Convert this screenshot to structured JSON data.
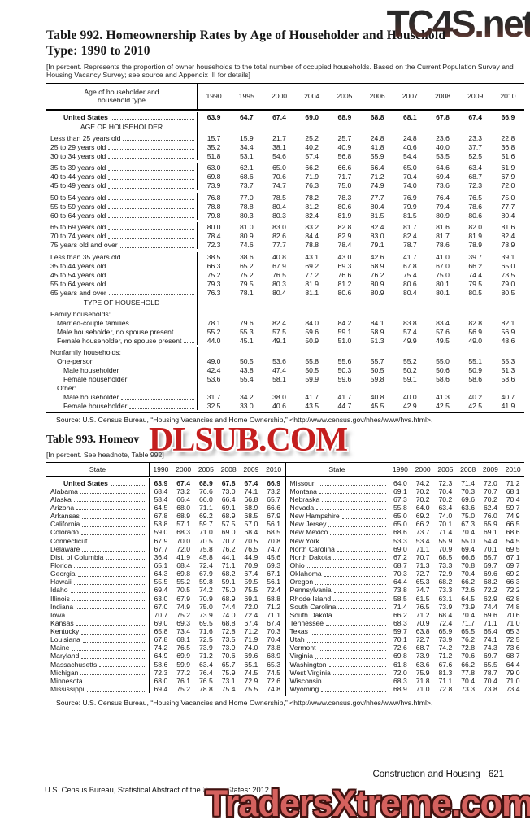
{
  "watermarks": {
    "top": "TC4S.net",
    "middle": "DLSUB.COM",
    "bottom": "TradersXtreme.com"
  },
  "table992": {
    "title_line1": "Table 992. Homeownership Rates by Age of Householder and Household",
    "title_line2": "Type: 1990 to 2010",
    "headnote": "[In percent. Represents the proportion of owner households to the total number of occupied households. Based on the Current Population Survey and Housing Vacancy Survey; see source and Appendix III for details]",
    "header_label_line1": "Age of householder and",
    "header_label_line2": "household type",
    "years": [
      "1990",
      "1995",
      "2000",
      "2004",
      "2005",
      "2006",
      "2007",
      "2008",
      "2009",
      "2010"
    ],
    "rows": [
      {
        "l": "United States",
        "s": "b",
        "i": 2,
        "v": [
          "63.9",
          "64.7",
          "67.4",
          "69.0",
          "68.9",
          "68.8",
          "68.1",
          "67.8",
          "67.4",
          "66.9"
        ]
      },
      {
        "l": "AGE OF HOUSEHOLDER",
        "s": "section"
      },
      {
        "l": "Less than 25 years old",
        "v": [
          "15.7",
          "15.9",
          "21.7",
          "25.2",
          "25.7",
          "24.8",
          "24.8",
          "23.6",
          "23.3",
          "22.8"
        ]
      },
      {
        "l": "25 to 29 years old",
        "v": [
          "35.2",
          "34.4",
          "38.1",
          "40.2",
          "40.9",
          "41.8",
          "40.6",
          "40.0",
          "37.7",
          "36.8"
        ]
      },
      {
        "l": "30 to 34 years old",
        "v": [
          "51.8",
          "53.1",
          "54.6",
          "57.4",
          "56.8",
          "55.9",
          "54.4",
          "53.5",
          "52.5",
          "51.6"
        ]
      },
      {
        "l": "35 to 39 years old",
        "g": 1,
        "v": [
          "63.0",
          "62.1",
          "65.0",
          "66.2",
          "66.6",
          "66.4",
          "65.0",
          "64.6",
          "63.4",
          "61.9"
        ]
      },
      {
        "l": "40 to 44 years old",
        "v": [
          "69.8",
          "68.6",
          "70.6",
          "71.9",
          "71.7",
          "71.2",
          "70.4",
          "69.4",
          "68.7",
          "67.9"
        ]
      },
      {
        "l": "45 to 49 years old",
        "v": [
          "73.9",
          "73.7",
          "74.7",
          "76.3",
          "75.0",
          "74.9",
          "74.0",
          "73.6",
          "72.3",
          "72.0"
        ]
      },
      {
        "l": "50 to 54 years old",
        "g": 1,
        "v": [
          "76.8",
          "77.0",
          "78.5",
          "78.2",
          "78.3",
          "77.7",
          "76.9",
          "76.4",
          "76.5",
          "75.0"
        ]
      },
      {
        "l": "55 to 59 years old",
        "v": [
          "78.8",
          "78.8",
          "80.4",
          "81.2",
          "80.6",
          "80.4",
          "79.9",
          "79.4",
          "78.6",
          "77.7"
        ]
      },
      {
        "l": "60 to 64 years old",
        "v": [
          "79.8",
          "80.3",
          "80.3",
          "82.4",
          "81.9",
          "81.5",
          "81.5",
          "80.9",
          "80.6",
          "80.4"
        ]
      },
      {
        "l": "65 to 69 years old",
        "g": 1,
        "v": [
          "80.0",
          "81.0",
          "83.0",
          "83.2",
          "82.8",
          "82.4",
          "81.7",
          "81.6",
          "82.0",
          "81.6"
        ]
      },
      {
        "l": "70 to 74 years old",
        "v": [
          "78.4",
          "80.9",
          "82.6",
          "84.4",
          "82.9",
          "83.0",
          "82.4",
          "81.7",
          "81.9",
          "82.4"
        ]
      },
      {
        "l": "75 years old and over",
        "v": [
          "72.3",
          "74.6",
          "77.7",
          "78.8",
          "78.4",
          "79.1",
          "78.7",
          "78.6",
          "78.9",
          "78.9"
        ]
      },
      {
        "l": "Less than 35 years old",
        "g": 1,
        "v": [
          "38.5",
          "38.6",
          "40.8",
          "43.1",
          "43.0",
          "42.6",
          "41.7",
          "41.0",
          "39.7",
          "39.1"
        ]
      },
      {
        "l": "35 to 44 years old",
        "v": [
          "66.3",
          "65.2",
          "67.9",
          "69.2",
          "69.3",
          "68.9",
          "67.8",
          "67.0",
          "66.2",
          "65.0"
        ]
      },
      {
        "l": "45 to 54 years old",
        "v": [
          "75.2",
          "75.2",
          "76.5",
          "77.2",
          "76.6",
          "76.2",
          "75.4",
          "75.0",
          "74.4",
          "73.5"
        ]
      },
      {
        "l": "55 to 64 years old",
        "v": [
          "79.3",
          "79.5",
          "80.3",
          "81.9",
          "81.2",
          "80.9",
          "80.6",
          "80.1",
          "79.5",
          "79.0"
        ]
      },
      {
        "l": "65 years and over",
        "v": [
          "76.3",
          "78.1",
          "80.4",
          "81.1",
          "80.6",
          "80.9",
          "80.4",
          "80.1",
          "80.5",
          "80.5"
        ]
      },
      {
        "l": "TYPE OF HOUSEHOLD",
        "s": "section"
      },
      {
        "l": "Family households:"
      },
      {
        "l": "Married-couple families",
        "i": 1,
        "v": [
          "78.1",
          "79.6",
          "82.4",
          "84.0",
          "84.2",
          "84.1",
          "83.8",
          "83.4",
          "82.8",
          "82.1"
        ]
      },
      {
        "l": "Male householder, no spouse present",
        "i": 1,
        "v": [
          "55.2",
          "55.3",
          "57.5",
          "59.6",
          "59.1",
          "58.9",
          "57.4",
          "57.6",
          "56.9",
          "56.9"
        ]
      },
      {
        "l": "Female householder, no spouse present",
        "i": 1,
        "v": [
          "44.0",
          "45.1",
          "49.1",
          "50.9",
          "51.0",
          "51.3",
          "49.9",
          "49.5",
          "49.0",
          "48.6"
        ]
      },
      {
        "l": "Nonfamily households:",
        "g": 1
      },
      {
        "l": "One-person",
        "i": 1,
        "v": [
          "49.0",
          "50.5",
          "53.6",
          "55.8",
          "55.6",
          "55.7",
          "55.2",
          "55.0",
          "55.1",
          "55.3"
        ]
      },
      {
        "l": "Male householder",
        "i": 2,
        "v": [
          "42.4",
          "43.8",
          "47.4",
          "50.5",
          "50.3",
          "50.5",
          "50.2",
          "50.6",
          "50.9",
          "51.3"
        ]
      },
      {
        "l": "Female householder",
        "i": 2,
        "v": [
          "53.6",
          "55.4",
          "58.1",
          "59.9",
          "59.6",
          "59.8",
          "59.1",
          "58.6",
          "58.6",
          "58.6"
        ]
      },
      {
        "l": "Other:",
        "i": 1
      },
      {
        "l": "Male householder",
        "i": 2,
        "v": [
          "31.7",
          "34.2",
          "38.0",
          "41.7",
          "41.7",
          "40.8",
          "40.0",
          "41.3",
          "40.2",
          "40.7"
        ]
      },
      {
        "l": "Female householder",
        "i": 2,
        "v": [
          "32.5",
          "33.0",
          "40.6",
          "43.5",
          "44.7",
          "45.5",
          "42.9",
          "42.5",
          "42.5",
          "41.9"
        ]
      }
    ],
    "source": "Source: U.S. Census Bureau, “Housing Vacancies and Home Ownership,” <http://www.census.gov/hhes/www/hvs.html>."
  },
  "table993": {
    "title_visible": "Table 993. Homeov",
    "headnote": "[In percent. See headnote, Table 992]",
    "state_label": "State",
    "years": [
      "1990",
      "2000",
      "2005",
      "2008",
      "2009",
      "2010"
    ],
    "left_rows": [
      {
        "l": "United States",
        "s": "b",
        "i": 2,
        "v": [
          "63.9",
          "67.4",
          "68.9",
          "67.8",
          "67.4",
          "66.9"
        ]
      },
      {
        "l": "Alabama",
        "v": [
          "68.4",
          "73.2",
          "76.6",
          "73.0",
          "74.1",
          "73.2"
        ]
      },
      {
        "l": "Alaska",
        "v": [
          "58.4",
          "66.4",
          "66.0",
          "66.4",
          "66.8",
          "65.7"
        ]
      },
      {
        "l": "Arizona",
        "v": [
          "64.5",
          "68.0",
          "71.1",
          "69.1",
          "68.9",
          "66.6"
        ]
      },
      {
        "l": "Arkansas",
        "v": [
          "67.8",
          "68.9",
          "69.2",
          "68.9",
          "68.5",
          "67.9"
        ]
      },
      {
        "l": "California",
        "v": [
          "53.8",
          "57.1",
          "59.7",
          "57.5",
          "57.0",
          "56.1"
        ]
      },
      {
        "l": "Colorado",
        "v": [
          "59.0",
          "68.3",
          "71.0",
          "69.0",
          "68.4",
          "68.5"
        ]
      },
      {
        "l": "Connecticut",
        "v": [
          "67.9",
          "70.0",
          "70.5",
          "70.7",
          "70.5",
          "70.8"
        ]
      },
      {
        "l": "Delaware",
        "v": [
          "67.7",
          "72.0",
          "75.8",
          "76.2",
          "76.5",
          "74.7"
        ]
      },
      {
        "l": "Dist. of Columbia",
        "v": [
          "36.4",
          "41.9",
          "45.8",
          "44.1",
          "44.9",
          "45.6"
        ]
      },
      {
        "l": "Florida",
        "v": [
          "65.1",
          "68.4",
          "72.4",
          "71.1",
          "70.9",
          "69.3"
        ]
      },
      {
        "l": "Georgia",
        "v": [
          "64.3",
          "69.8",
          "67.9",
          "68.2",
          "67.4",
          "67.1"
        ]
      },
      {
        "l": "Hawaii",
        "v": [
          "55.5",
          "55.2",
          "59.8",
          "59.1",
          "59.5",
          "56.1"
        ]
      },
      {
        "l": "Idaho",
        "v": [
          "69.4",
          "70.5",
          "74.2",
          "75.0",
          "75.5",
          "72.4"
        ]
      },
      {
        "l": "Illinois",
        "v": [
          "63.0",
          "67.9",
          "70.9",
          "68.9",
          "69.1",
          "68.8"
        ]
      },
      {
        "l": "Indiana",
        "v": [
          "67.0",
          "74.9",
          "75.0",
          "74.4",
          "72.0",
          "71.2"
        ]
      },
      {
        "l": "Iowa",
        "v": [
          "70.7",
          "75.2",
          "73.9",
          "74.0",
          "72.4",
          "71.1"
        ]
      },
      {
        "l": "Kansas",
        "v": [
          "69.0",
          "69.3",
          "69.5",
          "68.8",
          "67.4",
          "67.4"
        ]
      },
      {
        "l": "Kentucky",
        "v": [
          "65.8",
          "73.4",
          "71.6",
          "72.8",
          "71.2",
          "70.3"
        ]
      },
      {
        "l": "Louisiana",
        "v": [
          "67.8",
          "68.1",
          "72.5",
          "73.5",
          "71.9",
          "70.4"
        ]
      },
      {
        "l": "Maine",
        "v": [
          "74.2",
          "76.5",
          "73.9",
          "73.9",
          "74.0",
          "73.8"
        ]
      },
      {
        "l": "Maryland",
        "v": [
          "64.9",
          "69.9",
          "71.2",
          "70.6",
          "69.6",
          "68.9"
        ]
      },
      {
        "l": "Massachusetts",
        "v": [
          "58.6",
          "59.9",
          "63.4",
          "65.7",
          "65.1",
          "65.3"
        ]
      },
      {
        "l": "Michigan",
        "v": [
          "72.3",
          "77.2",
          "76.4",
          "75.9",
          "74.5",
          "74.5"
        ]
      },
      {
        "l": "Minnesota",
        "v": [
          "68.0",
          "76.1",
          "76.5",
          "73.1",
          "72.9",
          "72.6"
        ]
      },
      {
        "l": "Mississippi",
        "v": [
          "69.4",
          "75.2",
          "78.8",
          "75.4",
          "75.5",
          "74.8"
        ]
      }
    ],
    "right_rows": [
      {
        "l": "Missouri",
        "v": [
          "64.0",
          "74.2",
          "72.3",
          "71.4",
          "72.0",
          "71.2"
        ]
      },
      {
        "l": "Montana",
        "v": [
          "69.1",
          "70.2",
          "70.4",
          "70.3",
          "70.7",
          "68.1"
        ]
      },
      {
        "l": "Nebraska",
        "v": [
          "67.3",
          "70.2",
          "70.2",
          "69.6",
          "70.2",
          "70.4"
        ]
      },
      {
        "l": "Nevada",
        "v": [
          "55.8",
          "64.0",
          "63.4",
          "63.6",
          "62.4",
          "59.7"
        ]
      },
      {
        "l": "New Hampshire",
        "v": [
          "65.0",
          "69.2",
          "74.0",
          "75.0",
          "76.0",
          "74.9"
        ]
      },
      {
        "l": "New Jersey",
        "v": [
          "65.0",
          "66.2",
          "70.1",
          "67.3",
          "65.9",
          "66.5"
        ]
      },
      {
        "l": "New Mexico",
        "v": [
          "68.6",
          "73.7",
          "71.4",
          "70.4",
          "69.1",
          "68.6"
        ]
      },
      {
        "l": "New York",
        "v": [
          "53.3",
          "53.4",
          "55.9",
          "55.0",
          "54.4",
          "54.5"
        ]
      },
      {
        "l": "North Carolina",
        "v": [
          "69.0",
          "71.1",
          "70.9",
          "69.4",
          "70.1",
          "69.5"
        ]
      },
      {
        "l": "North Dakota",
        "v": [
          "67.2",
          "70.7",
          "68.5",
          "66.6",
          "65.7",
          "67.1"
        ]
      },
      {
        "l": "Ohio",
        "v": [
          "68.7",
          "71.3",
          "73.3",
          "70.8",
          "69.7",
          "69.7"
        ]
      },
      {
        "l": "Oklahoma",
        "v": [
          "70.3",
          "72.7",
          "72.9",
          "70.4",
          "69.6",
          "69.2"
        ]
      },
      {
        "l": "Oregon",
        "v": [
          "64.4",
          "65.3",
          "68.2",
          "66.2",
          "68.2",
          "66.3"
        ]
      },
      {
        "l": "Pennsylvania",
        "v": [
          "73.8",
          "74.7",
          "73.3",
          "72.6",
          "72.2",
          "72.2"
        ]
      },
      {
        "l": "Rhode Island",
        "v": [
          "58.5",
          "61.5",
          "63.1",
          "64.5",
          "62.9",
          "62.8"
        ]
      },
      {
        "l": "South Carolina",
        "v": [
          "71.4",
          "76.5",
          "73.9",
          "73.9",
          "74.4",
          "74.8"
        ]
      },
      {
        "l": "South Dakota",
        "v": [
          "66.2",
          "71.2",
          "68.4",
          "70.4",
          "69.6",
          "70.6"
        ]
      },
      {
        "l": "Tennessee",
        "v": [
          "68.3",
          "70.9",
          "72.4",
          "71.7",
          "71.1",
          "71.0"
        ]
      },
      {
        "l": "Texas",
        "v": [
          "59.7",
          "63.8",
          "65.9",
          "65.5",
          "65.4",
          "65.3"
        ]
      },
      {
        "l": "Utah",
        "v": [
          "70.1",
          "72.7",
          "73.9",
          "76.2",
          "74.1",
          "72.5"
        ]
      },
      {
        "l": "Vermont",
        "v": [
          "72.6",
          "68.7",
          "74.2",
          "72.8",
          "74.3",
          "73.6"
        ]
      },
      {
        "l": "Virginia",
        "v": [
          "69.8",
          "73.9",
          "71.2",
          "70.6",
          "69.7",
          "68.7"
        ]
      },
      {
        "l": "Washington",
        "v": [
          "61.8",
          "63.6",
          "67.6",
          "66.2",
          "65.5",
          "64.4"
        ]
      },
      {
        "l": "West Virginia",
        "v": [
          "72.0",
          "75.9",
          "81.3",
          "77.8",
          "78.7",
          "79.0"
        ]
      },
      {
        "l": "Wisconsin",
        "v": [
          "68.3",
          "71.8",
          "71.1",
          "70.4",
          "70.4",
          "71.0"
        ]
      },
      {
        "l": "Wyoming",
        "v": [
          "68.9",
          "71.0",
          "72.8",
          "73.3",
          "73.8",
          "73.4"
        ]
      }
    ],
    "source": "Source: U.S. Census Bureau, “Housing Vacancies and Home Ownership,” <http://www.census.gov/hhes/www/hvs.html>."
  },
  "footer": {
    "section": "Construction and Housing",
    "page_number": "621",
    "citation": "U.S. Census Bureau, Statistical Abstract of the United States: 2012"
  }
}
